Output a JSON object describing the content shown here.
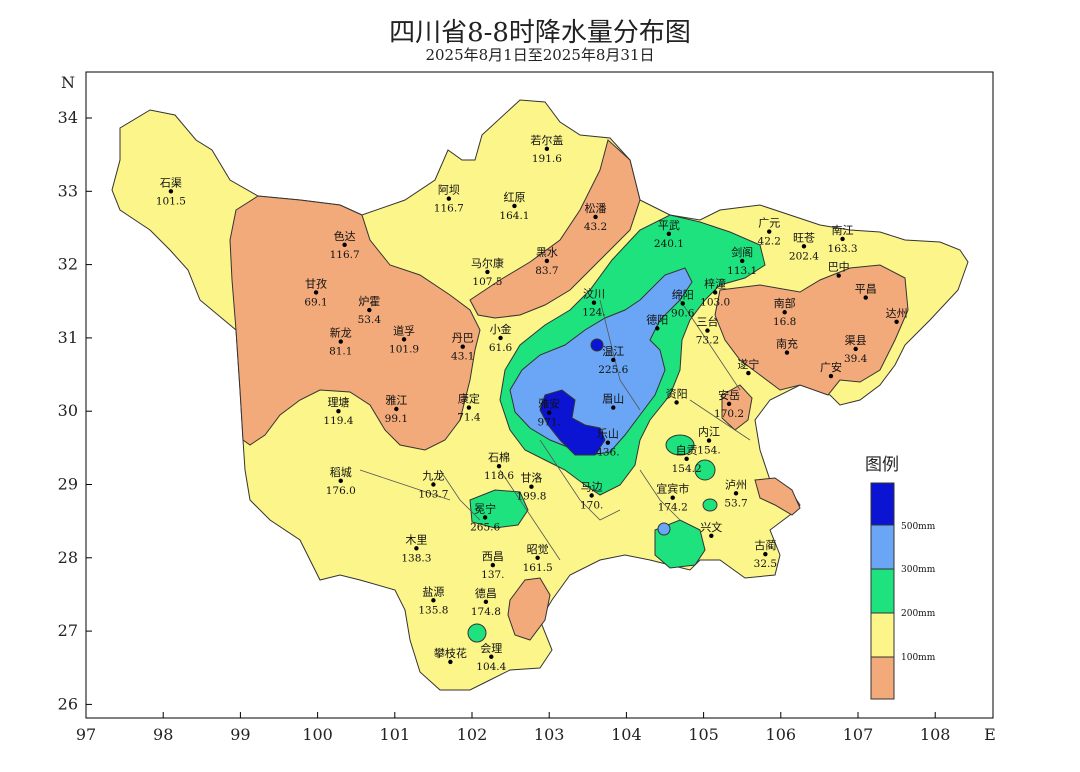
{
  "title": "四川省8-8时降水量分布图",
  "subtitle": "2025年8月1日至2025年8月31日",
  "axes": {
    "x_ticks": [
      "97",
      "98",
      "99",
      "100",
      "101",
      "102",
      "103",
      "104",
      "105",
      "106",
      "107",
      "108"
    ],
    "y_ticks": [
      "34",
      "33",
      "32",
      "31",
      "30",
      "29",
      "28",
      "27",
      "26"
    ],
    "x_label": "E",
    "y_label": "N"
  },
  "legend": {
    "title": "图例",
    "items": [
      {
        "label": "500mm",
        "color": "#0a14d2"
      },
      {
        "label": "300mm",
        "color": "#6aa6f5"
      },
      {
        "label": "200mm",
        "color": "#1ee27e"
      },
      {
        "label": "100mm",
        "color": "#fbf58a"
      },
      {
        "label": "",
        "color": "#f2aa7a"
      }
    ]
  },
  "colors": {
    "lt100": "#f2aa7a",
    "r100_200": "#fbf58a",
    "r200_300": "#1ee27e",
    "r300_500": "#6aa6f5",
    "gt500": "#0a14d2"
  },
  "stations": [
    {
      "name": "石渠",
      "value": "101.5",
      "lon": 98.1,
      "lat": 33.0
    },
    {
      "name": "若尔盖",
      "value": "191.6",
      "lon": 102.97,
      "lat": 33.58
    },
    {
      "name": "色达",
      "value": "116.7",
      "lon": 100.35,
      "lat": 32.27
    },
    {
      "name": "阿坝",
      "value": "116.7",
      "lon": 101.7,
      "lat": 32.9
    },
    {
      "name": "红原",
      "value": "164.1",
      "lon": 102.55,
      "lat": 32.8
    },
    {
      "name": "松潘",
      "value": "43.2",
      "lon": 103.6,
      "lat": 32.65
    },
    {
      "name": "平武",
      "value": "240.1",
      "lon": 104.55,
      "lat": 32.42
    },
    {
      "name": "广元",
      "value": "42.2",
      "lon": 105.85,
      "lat": 32.45
    },
    {
      "name": "旺苍",
      "value": "202.4",
      "lon": 106.3,
      "lat": 32.25
    },
    {
      "name": "南江",
      "value": "163.3",
      "lon": 106.8,
      "lat": 32.35
    },
    {
      "name": "马尔康",
      "value": "107.5",
      "lon": 102.2,
      "lat": 31.9
    },
    {
      "name": "黑水",
      "value": "83.7",
      "lon": 102.97,
      "lat": 32.05
    },
    {
      "name": "剑阁",
      "value": "113.1",
      "lon": 105.5,
      "lat": 32.05
    },
    {
      "name": "巴中",
      "value": "",
      "lon": 106.75,
      "lat": 31.85
    },
    {
      "name": "甘孜",
      "value": "69.1",
      "lon": 99.98,
      "lat": 31.62
    },
    {
      "name": "炉霍",
      "value": "53.4",
      "lon": 100.67,
      "lat": 31.38
    },
    {
      "name": "汶川",
      "value": "124.",
      "lon": 103.58,
      "lat": 31.48
    },
    {
      "name": "梓潼",
      "value": "103.0",
      "lon": 105.15,
      "lat": 31.62
    },
    {
      "name": "平昌",
      "value": "",
      "lon": 107.1,
      "lat": 31.55
    },
    {
      "name": "新龙",
      "value": "81.1",
      "lon": 100.3,
      "lat": 30.95
    },
    {
      "name": "道孚",
      "value": "101.9",
      "lon": 101.12,
      "lat": 30.98
    },
    {
      "name": "丹巴",
      "value": "43.1",
      "lon": 101.88,
      "lat": 30.88
    },
    {
      "name": "小金",
      "value": "61.6",
      "lon": 102.37,
      "lat": 31.0
    },
    {
      "name": "德阳",
      "value": "",
      "lon": 104.4,
      "lat": 31.13
    },
    {
      "name": "绵阳",
      "value": "90.6",
      "lon": 104.73,
      "lat": 31.47
    },
    {
      "name": "南部",
      "value": "16.8",
      "lon": 106.05,
      "lat": 31.35
    },
    {
      "name": "达州",
      "value": "",
      "lon": 107.5,
      "lat": 31.22
    },
    {
      "name": "三台",
      "value": "73.2",
      "lon": 105.05,
      "lat": 31.1
    },
    {
      "name": "温江",
      "value": "225.6",
      "lon": 103.83,
      "lat": 30.7
    },
    {
      "name": "南充",
      "value": "",
      "lon": 106.08,
      "lat": 30.8
    },
    {
      "name": "渠县",
      "value": "39.4",
      "lon": 106.97,
      "lat": 30.85
    },
    {
      "name": "广安",
      "value": "",
      "lon": 106.65,
      "lat": 30.48
    },
    {
      "name": "遂宁",
      "value": "",
      "lon": 105.58,
      "lat": 30.52
    },
    {
      "name": "安岳",
      "value": "170.2",
      "lon": 105.33,
      "lat": 30.1
    },
    {
      "name": "理塘",
      "value": "119.4",
      "lon": 100.27,
      "lat": 30.0
    },
    {
      "name": "雅江",
      "value": "99.1",
      "lon": 101.02,
      "lat": 30.03
    },
    {
      "name": "康定",
      "value": "71.4",
      "lon": 101.96,
      "lat": 30.05
    },
    {
      "name": "雅安",
      "value": "971.",
      "lon": 103.0,
      "lat": 29.98
    },
    {
      "name": "眉山",
      "value": "",
      "lon": 103.83,
      "lat": 30.05
    },
    {
      "name": "资阳",
      "value": "",
      "lon": 104.65,
      "lat": 30.12
    },
    {
      "name": "内江",
      "value": "154.",
      "lon": 105.07,
      "lat": 29.6
    },
    {
      "name": "乐山",
      "value": "436.",
      "lon": 103.76,
      "lat": 29.57
    },
    {
      "name": "自贡",
      "value": "154.2",
      "lon": 104.78,
      "lat": 29.35
    },
    {
      "name": "稻城",
      "value": "176.0",
      "lon": 100.3,
      "lat": 29.05
    },
    {
      "name": "九龙",
      "value": "103.7",
      "lon": 101.5,
      "lat": 29.0
    },
    {
      "name": "石棉",
      "value": "118.6",
      "lon": 102.35,
      "lat": 29.25
    },
    {
      "name": "甘洛",
      "value": "199.8",
      "lon": 102.77,
      "lat": 28.97
    },
    {
      "name": "马边",
      "value": "170.",
      "lon": 103.55,
      "lat": 28.85
    },
    {
      "name": "宜宾市",
      "value": "174.2",
      "lon": 104.6,
      "lat": 28.82
    },
    {
      "name": "泸州",
      "value": "53.7",
      "lon": 105.42,
      "lat": 28.88
    },
    {
      "name": "冕宁",
      "value": "265.6",
      "lon": 102.17,
      "lat": 28.55
    },
    {
      "name": "兴文",
      "value": "",
      "lon": 105.1,
      "lat": 28.3
    },
    {
      "name": "古蔺",
      "value": "32.5",
      "lon": 105.8,
      "lat": 28.05
    },
    {
      "name": "木里",
      "value": "138.3",
      "lon": 101.28,
      "lat": 28.13
    },
    {
      "name": "西昌",
      "value": "137.",
      "lon": 102.27,
      "lat": 27.9
    },
    {
      "name": "昭觉",
      "value": "161.5",
      "lon": 102.85,
      "lat": 28.0
    },
    {
      "name": "盐源",
      "value": "135.8",
      "lon": 101.5,
      "lat": 27.42
    },
    {
      "name": "德昌",
      "value": "174.8",
      "lon": 102.18,
      "lat": 27.4
    },
    {
      "name": "会理",
      "value": "104.4",
      "lon": 102.25,
      "lat": 26.65
    },
    {
      "name": "攀枝花",
      "value": "",
      "lon": 101.72,
      "lat": 26.58
    }
  ]
}
